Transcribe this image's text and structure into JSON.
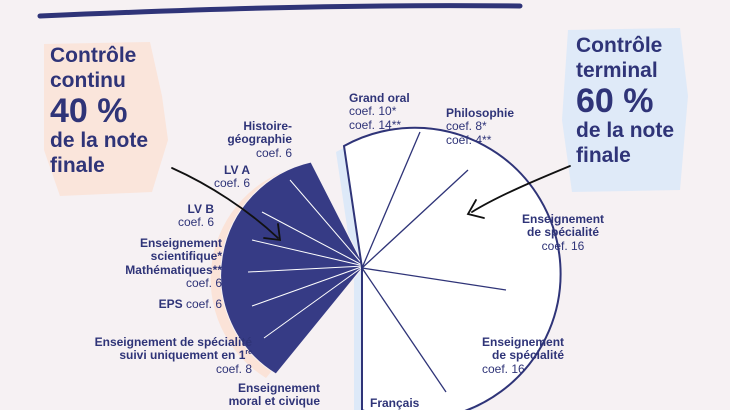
{
  "left_title": {
    "line1": "Contrôle",
    "line2": "continu",
    "percent": "40 %",
    "line4": "de la note",
    "line5": "finale"
  },
  "right_title": {
    "line1": "Contrôle",
    "line2": "terminal",
    "percent": "60 %",
    "line4": "de la note",
    "line5": "finale"
  },
  "continuous_items": [
    {
      "name_lines": [
        "Histoire-",
        "géographie"
      ],
      "coef": "coef. 6"
    },
    {
      "name_lines": [
        "LV A"
      ],
      "coef": "coef. 6"
    },
    {
      "name_lines": [
        "LV B"
      ],
      "coef": "coef. 6"
    },
    {
      "name_lines": [
        "Enseignement",
        "scientifique*",
        "Mathématiques**"
      ],
      "coef": "coef. 6"
    },
    {
      "name_lines": [
        "EPS"
      ],
      "coef": "coef. 6"
    },
    {
      "name_lines": [
        "Enseignement de spécialité",
        "suivi uniquement en 1"
      ],
      "sup": "re",
      "coef": "coef. 8"
    },
    {
      "name_lines": [
        "Enseignement",
        "moral et civique"
      ],
      "coef": ""
    }
  ],
  "terminal_items": [
    {
      "name_lines": [
        "Grand oral"
      ],
      "coef_lines": [
        "coef. 10*",
        "coef. 14**"
      ]
    },
    {
      "name_lines": [
        "Philosophie"
      ],
      "coef_lines": [
        "coef. 8*",
        "coef. 4**"
      ]
    },
    {
      "name_lines": [
        "Enseignement",
        "de spécialité"
      ],
      "coef_lines": [
        "coef. 16"
      ]
    },
    {
      "name_lines": [
        "Enseignement",
        "de spécialité"
      ],
      "coef_lines": [
        "coef. 16"
      ]
    },
    {
      "name_lines": [
        "Français"
      ],
      "coef_lines": []
    }
  ],
  "colors": {
    "navy": "#363b85",
    "text": "#2f3478",
    "highlight_left": "#fbe3d8",
    "highlight_right": "#dde9f8",
    "background": "#f6f1f3",
    "accent_red": "#e2422f"
  }
}
